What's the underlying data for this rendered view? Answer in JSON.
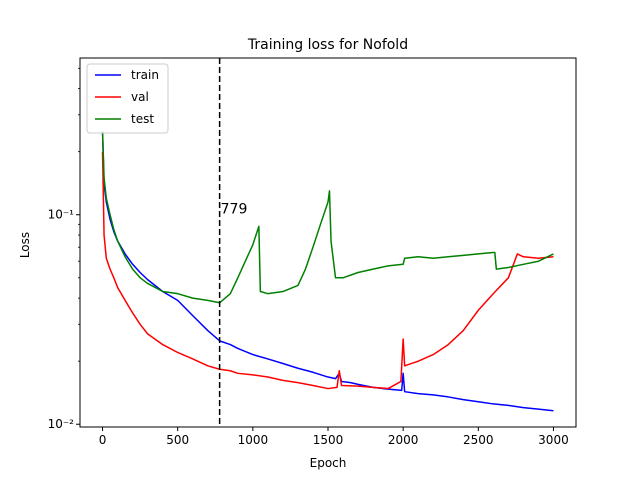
{
  "chart_data": {
    "type": "line",
    "title": "Training loss for Nofold",
    "xlabel": "Epoch",
    "ylabel": "Loss",
    "yscale": "log",
    "xlim": [
      -150,
      3150
    ],
    "ylim": [
      0.0097,
      0.56
    ],
    "xticks": [
      0,
      500,
      1000,
      1500,
      2000,
      2500,
      3000
    ],
    "xtick_labels": [
      "0",
      "500",
      "1000",
      "1500",
      "2000",
      "2500",
      "3000"
    ],
    "yticks": [
      0.01,
      0.1
    ],
    "ytick_labels": [
      "10⁻²",
      "10⁻¹"
    ],
    "grid": false,
    "legend": "top-left",
    "series": [
      {
        "name": "train",
        "color": "#0000ff",
        "x": [
          0,
          10,
          25,
          50,
          75,
          100,
          150,
          200,
          250,
          300,
          400,
          500,
          600,
          700,
          779,
          850,
          900,
          1000,
          1100,
          1200,
          1300,
          1400,
          1500,
          1550,
          1575,
          1590,
          1650,
          1700,
          1800,
          1900,
          1990,
          2000,
          2010,
          2100,
          2200,
          2300,
          2400,
          2500,
          2600,
          2700,
          2800,
          2900,
          3000
        ],
        "y": [
          0.25,
          0.14,
          0.115,
          0.095,
          0.083,
          0.075,
          0.065,
          0.058,
          0.053,
          0.049,
          0.043,
          0.039,
          0.033,
          0.028,
          0.025,
          0.024,
          0.023,
          0.0215,
          0.0205,
          0.0195,
          0.0185,
          0.0177,
          0.0168,
          0.0165,
          0.0175,
          0.016,
          0.0158,
          0.0155,
          0.015,
          0.0147,
          0.0145,
          0.0175,
          0.0143,
          0.014,
          0.0138,
          0.0135,
          0.0131,
          0.0128,
          0.0125,
          0.0123,
          0.012,
          0.0118,
          0.0116
        ]
      },
      {
        "name": "val",
        "color": "#ff0000",
        "x": [
          0,
          10,
          25,
          50,
          75,
          100,
          150,
          200,
          250,
          300,
          400,
          500,
          600,
          700,
          779,
          850,
          900,
          1000,
          1100,
          1200,
          1300,
          1400,
          1500,
          1560,
          1575,
          1590,
          1700,
          1800,
          1900,
          1985,
          2000,
          2010,
          2100,
          2200,
          2300,
          2400,
          2500,
          2600,
          2700,
          2760,
          2800,
          2900,
          3000
        ],
        "y": [
          0.2,
          0.08,
          0.062,
          0.055,
          0.05,
          0.045,
          0.039,
          0.034,
          0.03,
          0.027,
          0.024,
          0.022,
          0.0205,
          0.019,
          0.0183,
          0.018,
          0.0175,
          0.0172,
          0.0168,
          0.0162,
          0.0158,
          0.0153,
          0.0148,
          0.015,
          0.018,
          0.0153,
          0.0152,
          0.015,
          0.0148,
          0.016,
          0.0255,
          0.019,
          0.02,
          0.0215,
          0.024,
          0.028,
          0.035,
          0.042,
          0.05,
          0.065,
          0.063,
          0.062,
          0.063
        ]
      },
      {
        "name": "test",
        "color": "#008000",
        "x": [
          0,
          10,
          25,
          50,
          75,
          100,
          150,
          200,
          250,
          300,
          400,
          500,
          600,
          700,
          779,
          850,
          900,
          950,
          1000,
          1040,
          1050,
          1100,
          1200,
          1300,
          1350,
          1400,
          1450,
          1500,
          1510,
          1520,
          1550,
          1600,
          1700,
          1800,
          1900,
          2000,
          2010,
          2100,
          2200,
          2300,
          2400,
          2500,
          2600,
          2610,
          2620,
          2700,
          2800,
          2900,
          3000
        ],
        "y": [
          0.25,
          0.15,
          0.12,
          0.1,
          0.085,
          0.075,
          0.063,
          0.055,
          0.05,
          0.047,
          0.043,
          0.042,
          0.04,
          0.039,
          0.038,
          0.042,
          0.05,
          0.06,
          0.072,
          0.088,
          0.043,
          0.042,
          0.043,
          0.046,
          0.055,
          0.07,
          0.09,
          0.115,
          0.13,
          0.075,
          0.05,
          0.05,
          0.053,
          0.055,
          0.057,
          0.058,
          0.062,
          0.063,
          0.062,
          0.063,
          0.064,
          0.065,
          0.066,
          0.066,
          0.055,
          0.056,
          0.058,
          0.06,
          0.065
        ]
      }
    ],
    "annotations": [
      {
        "type": "vline",
        "x": 779,
        "style": "dashed",
        "color": "#000000"
      },
      {
        "type": "text",
        "text": "779",
        "x": 779,
        "y": 0.1
      }
    ]
  }
}
